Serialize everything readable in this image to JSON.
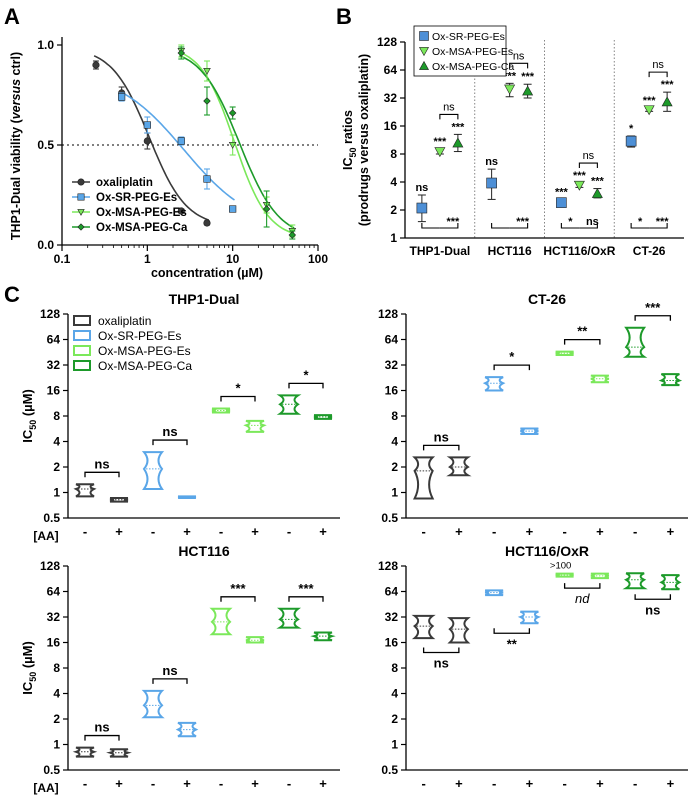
{
  "colors": {
    "oxaliplatin": "#3a3a3a",
    "sr": "#5aa6e8",
    "msa_es": "#7be85a",
    "msa_ca": "#1d9a2a",
    "box_sr": "#4d8fd6",
    "axis": "#000000",
    "gridref": "#777777"
  },
  "chart_data": [
    {
      "id": "A",
      "panel_label": "A",
      "type": "line",
      "title": "",
      "xlabel": "concentration (µM)",
      "ylabel_main": "THP1-Dual viability (",
      "ylabel_ital": "versus",
      "ylabel_tail": " ctrl)",
      "xscale": "log",
      "xlim": [
        0.1,
        100
      ],
      "ylim": [
        0,
        1.0
      ],
      "x_ticks": [
        "0.1",
        "1",
        "10",
        "100"
      ],
      "y_ticks": [
        "0.0",
        "0.5",
        "1.0"
      ],
      "reference_line": {
        "y": 0.5,
        "style": "dotted"
      },
      "legend": [
        "oxaliplatin",
        "Ox-SR-PEG-Es",
        "Ox-MSA-PEG-Es",
        "Ox-MSA-PEG-Ca"
      ],
      "series": [
        {
          "name": "oxaliplatin",
          "marker": "circle",
          "x": [
            0.25,
            0.5,
            1,
            2.5,
            5
          ],
          "y": [
            0.9,
            0.76,
            0.52,
            0.17,
            0.11
          ],
          "err": [
            0.02,
            0.03,
            0.04,
            0.01,
            0.01
          ]
        },
        {
          "name": "Ox-SR-PEG-Es",
          "marker": "square",
          "x": [
            0.5,
            1,
            2.5,
            5,
            10
          ],
          "y": [
            0.74,
            0.6,
            0.52,
            0.33,
            0.18
          ],
          "err": [
            0.02,
            0.04,
            0.02,
            0.05,
            0.01
          ]
        },
        {
          "name": "Ox-MSA-PEG-Es",
          "marker": "triangle-down",
          "x": [
            2.5,
            5,
            10,
            25,
            50
          ],
          "y": [
            0.97,
            0.87,
            0.5,
            0.2,
            0.07
          ],
          "err": [
            0.03,
            0.05,
            0.05,
            0.04,
            0.03
          ]
        },
        {
          "name": "Ox-MSA-PEG-Ca",
          "marker": "diamond",
          "x": [
            2.5,
            5,
            10,
            25,
            50
          ],
          "y": [
            0.96,
            0.72,
            0.66,
            0.18,
            0.05
          ],
          "err": [
            0.03,
            0.07,
            0.03,
            0.09,
            0.02
          ]
        }
      ]
    },
    {
      "id": "B",
      "panel_label": "B",
      "type": "scatter",
      "ylabel_pre": "IC",
      "ylabel_sub": "50",
      "ylabel_post": " ratios",
      "ylabel2": "(prodrugs versus oxaliplatin)",
      "yscale": "log2",
      "ylim": [
        1,
        128
      ],
      "y_ticks": [
        "1",
        "2",
        "4",
        "8",
        "16",
        "32",
        "64",
        "128"
      ],
      "categories": [
        "THP1-Dual",
        "HCT116",
        "HCT116/OxR",
        "CT-26"
      ],
      "legend": [
        "Ox-SR-PEG-Es",
        "Ox-MSA-PEG-Es",
        "Ox-MSA-PEG-Ca"
      ],
      "series": [
        {
          "name": "Ox-SR-PEG-Es",
          "marker": "square",
          "values": [
            2.1,
            3.9,
            2.4,
            11.0
          ],
          "err_lo": [
            1.5,
            2.6,
            2.2,
            9.5
          ],
          "err_hi": [
            2.9,
            5.5,
            2.6,
            12.5
          ],
          "stars": [
            "ns",
            "ns",
            "***",
            "*"
          ]
        },
        {
          "name": "Ox-MSA-PEG-Es",
          "marker": "triangle-down",
          "values": [
            8.5,
            40,
            3.7,
            24
          ],
          "err_lo": [
            8.0,
            33,
            3.5,
            23
          ],
          "err_hi": [
            9.0,
            46,
            3.9,
            25
          ],
          "stars": [
            "***",
            "***",
            "***",
            "***"
          ]
        },
        {
          "name": "Ox-MSA-PEG-Ca",
          "marker": "triangle-up",
          "values": [
            10.5,
            38,
            3.0,
            29
          ],
          "err_lo": [
            8.5,
            32,
            2.7,
            23
          ],
          "err_hi": [
            13,
            45,
            3.4,
            37
          ],
          "stars": [
            "***",
            "***",
            "***",
            "***"
          ]
        }
      ],
      "bracket_top": [
        "ns",
        "ns",
        "ns",
        "ns"
      ],
      "bracket_bottom_left": [
        "",
        "",
        "*",
        "*"
      ],
      "bracket_bottom_right": [
        "***",
        "***",
        "ns",
        "***"
      ]
    },
    {
      "id": "C1",
      "panel_label": "C",
      "type": "violin",
      "title": "THP1-Dual",
      "ylabel_pre": "IC",
      "ylabel_sub": "50",
      "ylabel_post": " (µM)",
      "ylim": [
        0.5,
        128
      ],
      "y_ticks": [
        "0.5",
        "1",
        "2",
        "4",
        "8",
        "16",
        "32",
        "64",
        "128"
      ],
      "aa_label": "[AA]",
      "aa": [
        "-",
        "+",
        "-",
        "+",
        "-",
        "+",
        "-",
        "+"
      ],
      "legend": [
        "oxaliplatin",
        "Ox-SR-PEG-Es",
        "Ox-MSA-PEG-Es",
        "Ox-MSA-PEG-Ca"
      ],
      "groups": [
        {
          "compound": "oxaliplatin",
          "values": [
            [
              0.9,
              1.1,
              1.25
            ],
            [
              0.78,
              0.82,
              0.86
            ]
          ],
          "sig": "ns"
        },
        {
          "compound": "Ox-SR-PEG-Es",
          "values": [
            [
              1.1,
              1.9,
              3.0
            ],
            [
              0.86,
              0.88,
              0.9
            ]
          ],
          "sig": "ns"
        },
        {
          "compound": "Ox-MSA-PEG-Es",
          "values": [
            [
              8.8,
              9.3,
              9.8
            ],
            [
              5.2,
              6.2,
              7.0
            ]
          ],
          "sig": "*"
        },
        {
          "compound": "Ox-MSA-PEG-Ca",
          "values": [
            [
              8.5,
              11,
              14
            ],
            [
              7.4,
              7.8,
              8.2
            ]
          ],
          "sig": "*"
        }
      ]
    },
    {
      "id": "C2",
      "type": "violin",
      "title": "CT-26",
      "ylim": [
        0.5,
        128
      ],
      "y_ticks": [
        "0.5",
        "1",
        "2",
        "4",
        "8",
        "16",
        "32",
        "64",
        "128"
      ],
      "aa": [
        "-",
        "+",
        "-",
        "+",
        "-",
        "+",
        "-",
        "+"
      ],
      "groups": [
        {
          "compound": "oxaliplatin",
          "values": [
            [
              0.85,
              1.8,
              2.6
            ],
            [
              1.6,
              2.0,
              2.6
            ]
          ],
          "sig": "ns"
        },
        {
          "compound": "Ox-SR-PEG-Es",
          "values": [
            [
              16,
              19.5,
              23
            ],
            [
              4.9,
              5.3,
              5.7
            ]
          ],
          "sig": "*"
        },
        {
          "compound": "Ox-MSA-PEG-Es",
          "values": [
            [
              42,
              44,
              46
            ],
            [
              20,
              22,
              24
            ]
          ],
          "sig": "**"
        },
        {
          "compound": "Ox-MSA-PEG-Ca",
          "values": [
            [
              40,
              52,
              88
            ],
            [
              18.5,
              21,
              25
            ]
          ],
          "sig": "***"
        }
      ]
    },
    {
      "id": "C3",
      "type": "violin",
      "title": "HCT116",
      "ylabel_pre": "IC",
      "ylabel_sub": "50",
      "ylabel_post": " (µM)",
      "ylim": [
        0.5,
        128
      ],
      "y_ticks": [
        "0.5",
        "1",
        "2",
        "4",
        "8",
        "16",
        "32",
        "64",
        "128"
      ],
      "aa_label": "[AA]",
      "aa": [
        "-",
        "+",
        "-",
        "+",
        "-",
        "+",
        "-",
        "+"
      ],
      "groups": [
        {
          "compound": "oxaliplatin",
          "values": [
            [
              0.72,
              0.82,
              0.92
            ],
            [
              0.72,
              0.8,
              0.88
            ]
          ],
          "sig": "ns"
        },
        {
          "compound": "Ox-SR-PEG-Es",
          "values": [
            [
              2.1,
              2.9,
              4.3
            ],
            [
              1.25,
              1.5,
              1.8
            ]
          ],
          "sig": "ns"
        },
        {
          "compound": "Ox-MSA-PEG-Es",
          "values": [
            [
              20,
              28,
              40
            ],
            [
              16,
              17,
              18.5
            ]
          ],
          "sig": "***"
        },
        {
          "compound": "Ox-MSA-PEG-Ca",
          "values": [
            [
              24,
              30,
              40
            ],
            [
              17,
              19,
              21
            ]
          ],
          "sig": "***"
        }
      ]
    },
    {
      "id": "C4",
      "type": "violin",
      "title": "HCT116/OxR",
      "ylim": [
        0.5,
        128
      ],
      "y_ticks": [
        "0.5",
        "1",
        "2",
        "4",
        "8",
        "16",
        "32",
        "64",
        "128"
      ],
      "aa": [
        "-",
        "+",
        "-",
        "+",
        "-",
        "+",
        "-",
        "+"
      ],
      "over_label": ">100",
      "groups": [
        {
          "compound": "oxaliplatin",
          "values": [
            [
              18,
              25,
              33
            ],
            [
              16,
              23,
              31
            ]
          ],
          "sig": "ns"
        },
        {
          "compound": "Ox-SR-PEG-Es",
          "values": [
            [
              58,
              62,
              66
            ],
            [
              27,
              32,
              37
            ]
          ],
          "sig": "**"
        },
        {
          "compound": "Ox-MSA-PEG-Es",
          "values": [
            [
              96,
              100,
              104
            ],
            [
              92,
              98,
              104
            ]
          ],
          "sig": "nd"
        },
        {
          "compound": "Ox-MSA-PEG-Ca",
          "values": [
            [
              70,
              88,
              105
            ],
            [
              68,
              82,
              100
            ]
          ],
          "sig": "ns"
        }
      ]
    }
  ]
}
